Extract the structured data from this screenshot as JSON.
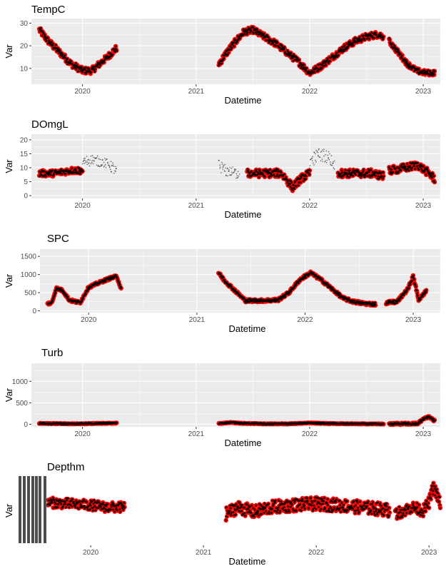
{
  "figure": {
    "background": "#ffffff",
    "panel_background": "#ebebeb",
    "grid_color": "#ffffff",
    "highlight_color": "#ff0000",
    "point_color": "#000000"
  },
  "chart_data": [
    {
      "type": "scatter",
      "title": "TempC",
      "xlabel": "Datetime",
      "ylabel": "Var",
      "xlim": [
        2019.55,
        2023.15
      ],
      "ylim": [
        3,
        32
      ],
      "y_ticks": [
        10,
        20,
        30
      ],
      "x_ticks": [
        {
          "value": 2020.0,
          "label": "2020"
        },
        {
          "value": 2021.0,
          "label": "2021"
        },
        {
          "value": 2022.0,
          "label": "2022"
        },
        {
          "value": 2023.0,
          "label": "2023"
        }
      ],
      "grid": true,
      "flagged_color": "#ff0000",
      "segments": [
        {
          "x": [
            2019.62,
            2019.7,
            2019.8,
            2019.9,
            2020.0,
            2020.08,
            2020.15,
            2020.22,
            2020.3
          ],
          "y": [
            27,
            22,
            17,
            12,
            9,
            9,
            12,
            15,
            19
          ],
          "spread": 2.5,
          "flagged": true
        },
        {
          "x": [
            2021.2,
            2021.27,
            2021.35,
            2021.42,
            2021.5,
            2021.6,
            2021.7,
            2021.8,
            2021.9,
            2022.0,
            2022.1,
            2022.2,
            2022.3,
            2022.4,
            2022.5,
            2022.6,
            2022.65
          ],
          "y": [
            12,
            17,
            22,
            26,
            27,
            24,
            21,
            17,
            13,
            8,
            11,
            15,
            19,
            22,
            24,
            25,
            24
          ],
          "spread": 2.5,
          "flagged": true
        },
        {
          "x": [
            2022.7,
            2022.78,
            2022.86,
            2022.94,
            2023.02,
            2023.1
          ],
          "y": [
            22,
            17,
            12,
            9,
            8,
            8
          ],
          "spread": 2.0,
          "flagged": true
        }
      ]
    },
    {
      "type": "scatter",
      "title": "DOmgL",
      "xlabel": "Datetime",
      "ylabel": "Var",
      "xlim": [
        2019.55,
        2023.15
      ],
      "ylim": [
        -1,
        22
      ],
      "y_ticks": [
        0,
        5,
        10,
        15,
        20
      ],
      "x_ticks": [
        {
          "value": 2020.0,
          "label": "2020"
        },
        {
          "value": 2021.0,
          "label": "2021"
        },
        {
          "value": 2022.0,
          "label": "2022"
        },
        {
          "value": 2023.0,
          "label": "2023"
        }
      ],
      "grid": true,
      "flagged_color": "#ff0000",
      "segments": [
        {
          "x": [
            2019.62,
            2019.75,
            2019.9,
            2020.0
          ],
          "y": [
            8,
            8,
            9,
            9
          ],
          "spread": 2.0,
          "flagged": true
        },
        {
          "x": [
            2020.0,
            2020.08,
            2020.16,
            2020.24,
            2020.3
          ],
          "y": [
            12,
            13,
            12,
            11,
            9
          ],
          "spread": 3.5,
          "flagged": false
        },
        {
          "x": [
            2021.2,
            2021.26,
            2021.38
          ],
          "y": [
            11,
            9,
            8
          ],
          "spread": 3.5,
          "flagged": false
        },
        {
          "x": [
            2021.45,
            2021.6,
            2021.75,
            2021.85,
            2021.92,
            2022.0
          ],
          "y": [
            8,
            8,
            8,
            3,
            6,
            8
          ],
          "spread": 2.5,
          "flagged": true
        },
        {
          "x": [
            2022.0,
            2022.08,
            2022.16,
            2022.22
          ],
          "y": [
            12,
            15,
            14,
            11
          ],
          "spread": 4.0,
          "flagged": false
        },
        {
          "x": [
            2022.25,
            2022.4,
            2022.55,
            2022.65
          ],
          "y": [
            8,
            8,
            8,
            7
          ],
          "spread": 2.5,
          "flagged": true
        },
        {
          "x": [
            2022.7,
            2022.85,
            2022.95,
            2023.05,
            2023.1
          ],
          "y": [
            9,
            10,
            11,
            8,
            6
          ],
          "spread": 2.5,
          "flagged": true
        }
      ]
    },
    {
      "type": "scatter",
      "title": "SPC",
      "xlabel": "Datetime",
      "ylabel": "Var",
      "xlim": [
        2019.55,
        2023.25
      ],
      "ylim": [
        -50,
        1700
      ],
      "y_ticks": [
        0,
        500,
        1000,
        1500
      ],
      "x_ticks": [
        {
          "value": 2020.0,
          "label": "2020"
        },
        {
          "value": 2021.0,
          "label": "2021"
        },
        {
          "value": 2022.0,
          "label": "2022"
        },
        {
          "value": 2023.0,
          "label": "2023"
        }
      ],
      "grid": true,
      "flagged_color": "#ff0000",
      "segments": [
        {
          "x": [
            2019.62,
            2019.66,
            2019.7,
            2019.76,
            2019.82,
            2019.88,
            2019.92,
            2020.0,
            2020.1,
            2020.2,
            2020.26,
            2020.3
          ],
          "y": [
            200,
            220,
            620,
            560,
            300,
            250,
            220,
            650,
            780,
            900,
            950,
            600
          ],
          "spread": 60,
          "flagged": true
        },
        {
          "x": [
            2021.2,
            2021.25,
            2021.32,
            2021.4,
            2021.45,
            2021.6,
            2021.75,
            2021.85,
            2021.95,
            2022.05,
            2022.15,
            2022.25,
            2022.35,
            2022.45,
            2022.55,
            2022.65
          ],
          "y": [
            1050,
            850,
            650,
            420,
            280,
            280,
            300,
            500,
            850,
            1050,
            850,
            600,
            350,
            250,
            200,
            180
          ],
          "spread": 70,
          "flagged": true
        },
        {
          "x": [
            2022.75,
            2022.85,
            2022.95,
            2023.0,
            2023.05,
            2023.12
          ],
          "y": [
            220,
            250,
            600,
            950,
            300,
            550
          ],
          "spread": 70,
          "flagged": true
        }
      ]
    },
    {
      "type": "scatter",
      "title": "Turb",
      "xlabel": "Datetime",
      "ylabel": "Var",
      "xlim": [
        2019.55,
        2023.15
      ],
      "ylim": [
        -60,
        1420
      ],
      "y_ticks": [
        0,
        500,
        1000
      ],
      "x_ticks": [
        {
          "value": 2020.0,
          "label": "2020"
        },
        {
          "value": 2021.0,
          "label": "2021"
        },
        {
          "value": 2022.0,
          "label": "2022"
        },
        {
          "value": 2023.0,
          "label": "2023"
        }
      ],
      "grid": true,
      "flagged_color": "#ff0000",
      "segments": [
        {
          "x": [
            2019.62,
            2019.8,
            2020.0,
            2020.15,
            2020.3
          ],
          "y": [
            20,
            15,
            10,
            20,
            25
          ],
          "spread": 12,
          "flagged": true
        },
        {
          "x": [
            2021.2,
            2021.3,
            2021.42,
            2021.6,
            2021.8,
            2022.0,
            2022.2,
            2022.4,
            2022.6,
            2022.65
          ],
          "y": [
            15,
            40,
            20,
            10,
            10,
            30,
            15,
            10,
            8,
            8
          ],
          "spread": 12,
          "flagged": true
        },
        {
          "x": [
            2022.7,
            2022.85,
            2022.95,
            2023.0,
            2023.05,
            2023.1
          ],
          "y": [
            10,
            10,
            15,
            120,
            180,
            80
          ],
          "spread": 40,
          "flagged": true
        }
      ]
    },
    {
      "type": "scatter",
      "title": "Depthm",
      "xlabel": "Datetime",
      "ylabel": "Var",
      "xlim": [
        2019.55,
        2023.1
      ],
      "ylim": [
        0,
        1
      ],
      "y_ticks": [],
      "x_ticks": [
        {
          "value": 2020.0,
          "label": "2020"
        },
        {
          "value": 2021.0,
          "label": "2021"
        },
        {
          "value": 2022.0,
          "label": "2022"
        },
        {
          "value": 2023.0,
          "label": "2023"
        }
      ],
      "grid": false,
      "flagged_color": "#ff0000",
      "segments": [
        {
          "x": [
            2019.62,
            2019.8,
            2020.0,
            2020.15,
            2020.3
          ],
          "y": [
            0.62,
            0.6,
            0.58,
            0.55,
            0.55
          ],
          "spread": 0.13,
          "flagged": true
        },
        {
          "x": [
            2021.2,
            2021.3,
            2021.45,
            2021.6,
            2021.8,
            2022.0,
            2022.2,
            2022.4,
            2022.6,
            2022.65
          ],
          "y": [
            0.45,
            0.55,
            0.48,
            0.55,
            0.58,
            0.6,
            0.58,
            0.55,
            0.52,
            0.5
          ],
          "spread": 0.17,
          "flagged": true
        },
        {
          "x": [
            2022.7,
            2022.85,
            2022.95,
            2023.0,
            2023.04,
            2023.1
          ],
          "y": [
            0.45,
            0.55,
            0.5,
            0.62,
            0.85,
            0.6
          ],
          "spread": 0.15,
          "flagged": true
        }
      ]
    }
  ]
}
